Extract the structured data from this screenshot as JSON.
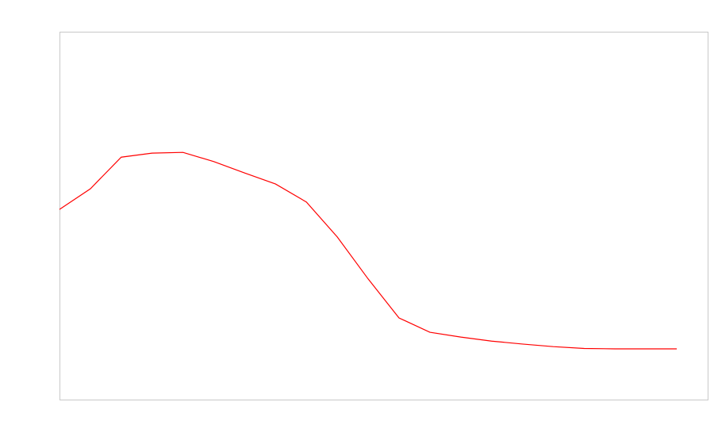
{
  "chart_data": {
    "type": "line",
    "x": [
      0,
      1,
      2,
      3,
      4,
      5,
      6,
      7,
      8,
      9,
      10,
      11,
      12,
      13,
      14,
      15,
      16,
      17,
      18,
      19,
      20
    ],
    "series": [
      {
        "color": "#ff0000",
        "values": [
          51.7,
          57.3,
          65.9,
          67.0,
          67.2,
          64.7,
          61.6,
          58.6,
          53.7,
          44.2,
          32.8,
          22.2,
          18.3,
          17.0,
          15.9,
          15.1,
          14.4,
          13.9,
          13.8,
          13.8,
          13.8
        ]
      }
    ],
    "xlim": [
      0,
      21
    ],
    "ylim": [
      0,
      100
    ],
    "grid": false
  }
}
